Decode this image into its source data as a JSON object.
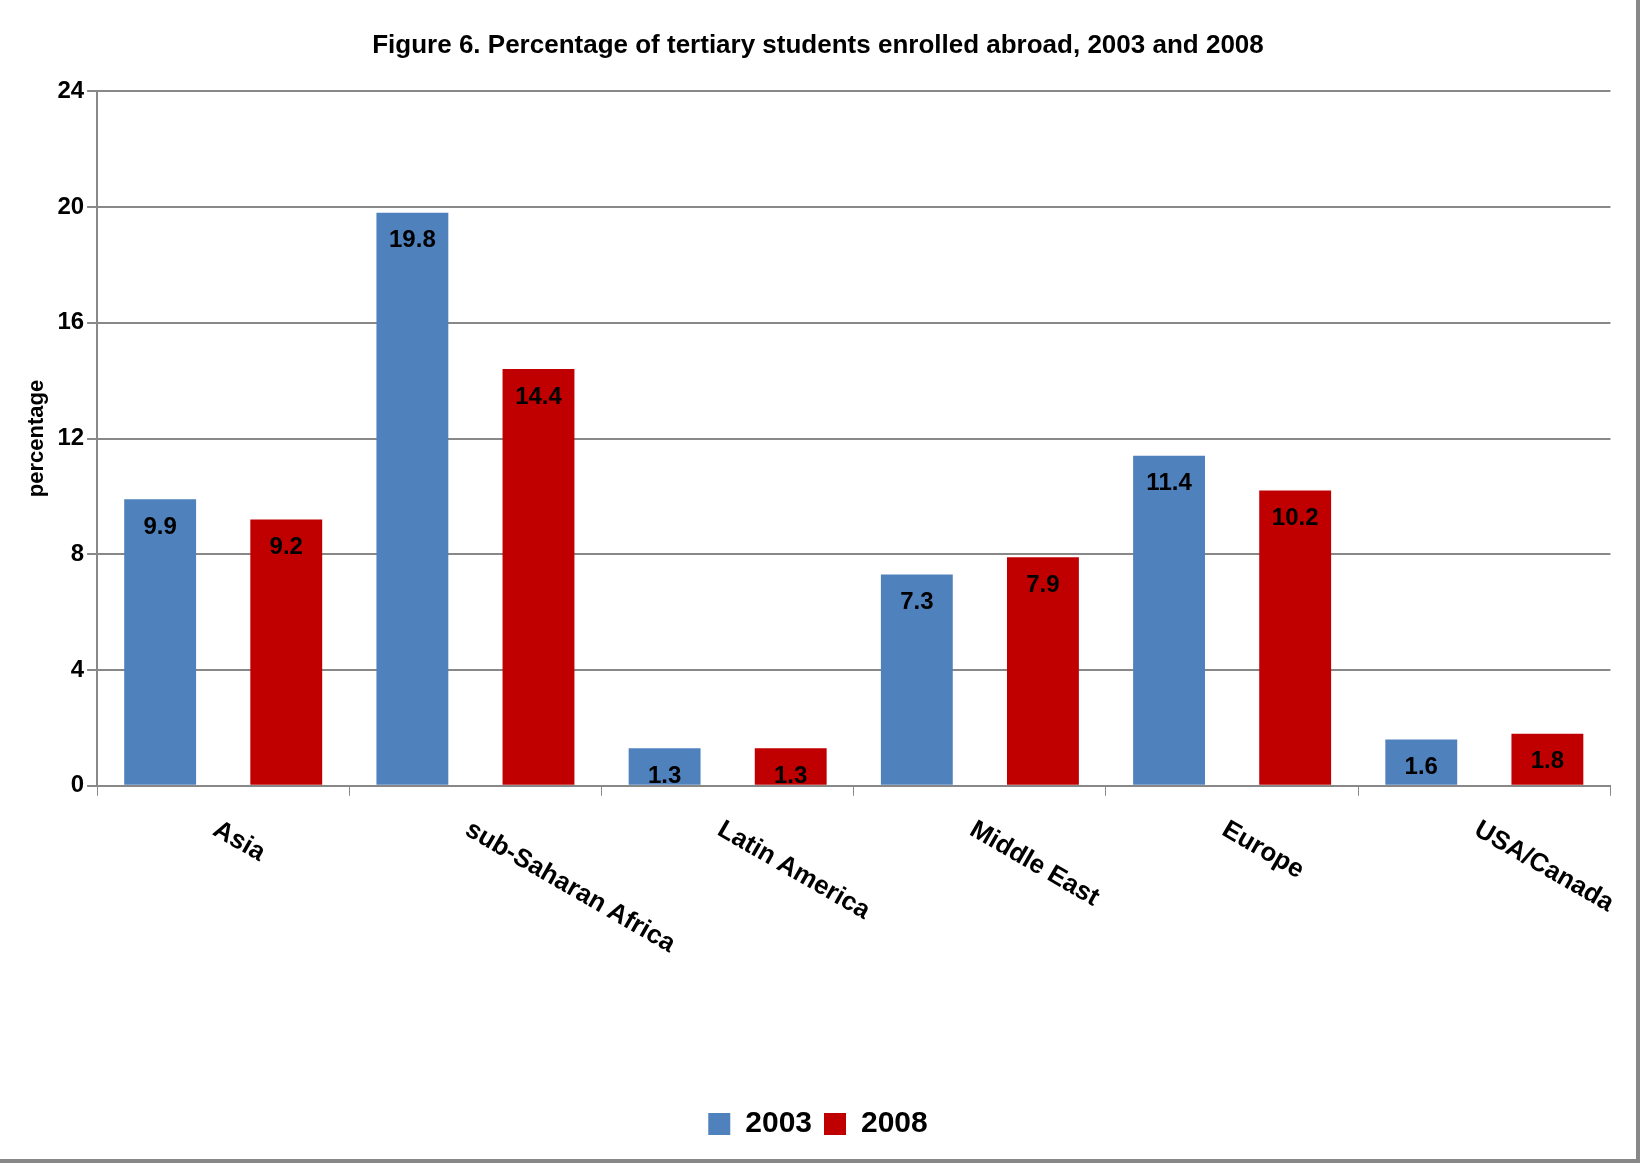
{
  "chart_data": {
    "type": "bar",
    "title": "Figure 6. Percentage of tertiary students enrolled abroad, 2003 and 2008",
    "ylabel": "percentage",
    "categories": [
      "Asia",
      "sub-Saharan Africa",
      "Latin America",
      "Middle East",
      "Europe",
      "USA/Canada"
    ],
    "series": [
      {
        "name": "2003",
        "color": "#4f81bd",
        "values": [
          9.9,
          19.8,
          1.3,
          7.3,
          11.4,
          1.6
        ]
      },
      {
        "name": "2008",
        "color": "#c00000",
        "values": [
          9.2,
          14.4,
          1.3,
          7.9,
          10.2,
          1.8
        ]
      }
    ],
    "ylim": [
      0,
      24
    ],
    "yticks": [
      0,
      4,
      8,
      12,
      16,
      20,
      24
    ],
    "grid": "y",
    "legend": "bottom",
    "data_labels": true
  }
}
